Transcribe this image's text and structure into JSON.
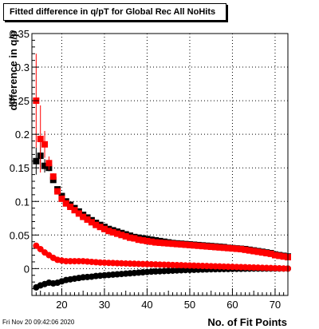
{
  "chart_data": {
    "type": "scatter",
    "title": "Fitted difference in q/pT for Global Rec All NoHits",
    "xlabel": "No. of Fit Points",
    "ylabel": "difference in q/p",
    "xlim": [
      13,
      73
    ],
    "ylim": [
      -0.04,
      0.35
    ],
    "x_ticks": [
      20,
      30,
      40,
      50,
      60,
      70
    ],
    "y_ticks": [
      0,
      0.05,
      0.1,
      0.15,
      0.2,
      0.25,
      0.3,
      0.35
    ],
    "y_tick_labels": [
      "0",
      "0.05",
      "0.1",
      "0.15",
      "0.2",
      "0.25",
      "0.3",
      "0.35"
    ],
    "grid": true,
    "series": [
      {
        "marker": "square",
        "color": "#000000",
        "x": [
          14,
          15,
          16,
          17,
          18,
          19,
          20,
          21,
          22,
          23,
          24,
          25,
          26,
          27,
          28,
          29,
          30,
          31,
          32,
          33,
          34,
          35,
          36,
          37,
          38,
          39,
          40,
          41,
          42,
          43,
          44,
          45,
          46,
          47,
          48,
          49,
          50,
          51,
          52,
          53,
          54,
          55,
          56,
          57,
          58,
          59,
          60,
          61,
          62,
          63,
          64,
          65,
          66,
          67,
          68,
          69,
          70,
          71,
          72,
          73
        ],
        "y": [
          0.16,
          0.168,
          0.153,
          0.15,
          0.132,
          0.118,
          0.108,
          0.1,
          0.095,
          0.09,
          0.085,
          0.08,
          0.076,
          0.072,
          0.068,
          0.065,
          0.062,
          0.059,
          0.057,
          0.055,
          0.053,
          0.051,
          0.049,
          0.047,
          0.046,
          0.045,
          0.044,
          0.043,
          0.042,
          0.041,
          0.04,
          0.039,
          0.038,
          0.0375,
          0.037,
          0.0365,
          0.036,
          0.0355,
          0.035,
          0.0345,
          0.034,
          0.0335,
          0.033,
          0.0325,
          0.032,
          0.031,
          0.0305,
          0.03,
          0.0295,
          0.029,
          0.028,
          0.027,
          0.026,
          0.025,
          0.024,
          0.023,
          0.021,
          0.02,
          0.019,
          0.018
        ],
        "err": [
          0.02,
          0.02,
          0.01,
          0.005,
          0.003,
          0.002,
          0.001,
          0,
          0,
          0,
          0,
          0,
          0,
          0,
          0,
          0,
          0,
          0,
          0,
          0,
          0,
          0,
          0,
          0,
          0,
          0,
          0,
          0,
          0,
          0,
          0,
          0,
          0,
          0,
          0,
          0,
          0,
          0,
          0,
          0,
          0,
          0,
          0,
          0,
          0,
          0,
          0,
          0,
          0,
          0,
          0,
          0,
          0,
          0,
          0,
          0,
          0,
          0,
          0,
          0
        ]
      },
      {
        "marker": "square",
        "color": "#ff0000",
        "x": [
          14,
          15,
          16,
          17,
          18,
          19,
          20,
          21,
          22,
          23,
          24,
          25,
          26,
          27,
          28,
          29,
          30,
          31,
          32,
          33,
          34,
          35,
          36,
          37,
          38,
          39,
          40,
          41,
          42,
          43,
          44,
          45,
          46,
          47,
          48,
          49,
          50,
          51,
          52,
          53,
          54,
          55,
          56,
          57,
          58,
          59,
          60,
          61,
          62,
          63,
          64,
          65,
          66,
          67,
          68,
          69,
          70,
          71,
          72,
          73
        ],
        "y": [
          0.25,
          0.193,
          0.185,
          0.157,
          0.137,
          0.115,
          0.104,
          0.097,
          0.092,
          0.087,
          0.082,
          0.077,
          0.073,
          0.069,
          0.065,
          0.062,
          0.059,
          0.056,
          0.054,
          0.052,
          0.05,
          0.048,
          0.046,
          0.045,
          0.043,
          0.042,
          0.041,
          0.04,
          0.039,
          0.0385,
          0.038,
          0.0375,
          0.037,
          0.0365,
          0.036,
          0.0355,
          0.035,
          0.0345,
          0.034,
          0.0335,
          0.033,
          0.0325,
          0.032,
          0.0315,
          0.031,
          0.0305,
          0.03,
          0.0295,
          0.029,
          0.028,
          0.027,
          0.026,
          0.025,
          0.024,
          0.023,
          0.022,
          0.02,
          0.019,
          0.018,
          0.017
        ],
        "err": [
          0.07,
          0.05,
          0.02,
          0.01,
          0.005,
          0.003,
          0.002,
          0,
          0,
          0,
          0,
          0,
          0,
          0,
          0,
          0,
          0,
          0,
          0,
          0,
          0,
          0,
          0,
          0,
          0,
          0,
          0,
          0,
          0,
          0,
          0,
          0,
          0,
          0,
          0,
          0,
          0,
          0,
          0,
          0,
          0,
          0,
          0,
          0,
          0,
          0,
          0,
          0,
          0,
          0,
          0,
          0,
          0,
          0,
          0,
          0,
          0,
          0,
          0,
          0
        ]
      },
      {
        "marker": "circle",
        "color": "#000000",
        "x": [
          14,
          15,
          16,
          17,
          18,
          19,
          20,
          21,
          22,
          23,
          24,
          25,
          26,
          27,
          28,
          29,
          30,
          31,
          32,
          33,
          34,
          35,
          36,
          37,
          38,
          39,
          40,
          41,
          42,
          43,
          44,
          45,
          46,
          47,
          48,
          49,
          50,
          51,
          52,
          53,
          54,
          55,
          56,
          57,
          58,
          59,
          60,
          61,
          62,
          63,
          64,
          65,
          66,
          67,
          68,
          69,
          70,
          71,
          72,
          73
        ],
        "y": [
          -0.028,
          -0.025,
          -0.023,
          -0.021,
          -0.022,
          -0.021,
          -0.019,
          -0.017,
          -0.016,
          -0.015,
          -0.014,
          -0.013,
          -0.0125,
          -0.012,
          -0.011,
          -0.0105,
          -0.01,
          -0.0095,
          -0.009,
          -0.0085,
          -0.008,
          -0.0075,
          -0.007,
          -0.0065,
          -0.006,
          -0.0055,
          -0.005,
          -0.0045,
          -0.0042,
          -0.004,
          -0.0037,
          -0.0034,
          -0.0031,
          -0.0028,
          -0.0025,
          -0.0022,
          -0.002,
          -0.0018,
          -0.0016,
          -0.0014,
          -0.0012,
          -0.001,
          -0.0009,
          -0.0008,
          -0.0007,
          -0.0006,
          -0.0005,
          -0.0004,
          -0.0003,
          -0.0002,
          -0.0001,
          0,
          0,
          0,
          0,
          0,
          0,
          0,
          0,
          0
        ]
      },
      {
        "marker": "circle",
        "color": "#ff0000",
        "x": [
          14,
          15,
          16,
          17,
          18,
          19,
          20,
          21,
          22,
          23,
          24,
          25,
          26,
          27,
          28,
          29,
          30,
          31,
          32,
          33,
          34,
          35,
          36,
          37,
          38,
          39,
          40,
          41,
          42,
          43,
          44,
          45,
          46,
          47,
          48,
          49,
          50,
          51,
          52,
          53,
          54,
          55,
          56,
          57,
          58,
          59,
          60,
          61,
          62,
          63,
          64,
          65,
          66,
          67,
          68,
          69,
          70,
          71,
          72,
          73
        ],
        "y": [
          0.034,
          0.029,
          0.024,
          0.02,
          0.016,
          0.013,
          0.012,
          0.011,
          0.011,
          0.011,
          0.011,
          0.011,
          0.0105,
          0.01,
          0.0095,
          0.009,
          0.0088,
          0.0085,
          0.0083,
          0.008,
          0.0078,
          0.0076,
          0.0074,
          0.0072,
          0.007,
          0.0068,
          0.0066,
          0.0064,
          0.0062,
          0.006,
          0.0058,
          0.0056,
          0.0054,
          0.0052,
          0.005,
          0.0048,
          0.0046,
          0.0044,
          0.0042,
          0.004,
          0.0038,
          0.0036,
          0.0034,
          0.0032,
          0.003,
          0.0028,
          0.0026,
          0.0024,
          0.0022,
          0.002,
          0.0018,
          0.0016,
          0.0014,
          0.0012,
          0.001,
          0.0008,
          0.0006,
          0.0004,
          0.0002,
          0
        ]
      }
    ]
  },
  "timestamp": "Fri Nov 20 09:42:06 2020"
}
